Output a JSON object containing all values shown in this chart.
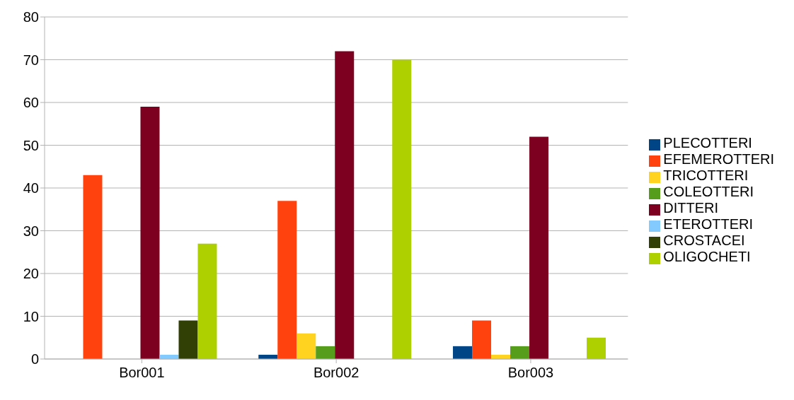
{
  "chart_data": {
    "type": "bar",
    "categories": [
      "Bor001",
      "Bor002",
      "Bor003"
    ],
    "series": [
      {
        "name": "PLECOTTERI",
        "color": "#004586",
        "values": [
          0,
          1,
          3
        ]
      },
      {
        "name": "EFEMEROTTERI",
        "color": "#ff420e",
        "values": [
          43,
          37,
          9
        ]
      },
      {
        "name": "TRICOTTERI",
        "color": "#ffd320",
        "values": [
          0,
          6,
          1
        ]
      },
      {
        "name": "COLEOTTERI",
        "color": "#579d1c",
        "values": [
          0,
          3,
          3
        ]
      },
      {
        "name": "DITTERI",
        "color": "#7e0021",
        "values": [
          59,
          72,
          52
        ]
      },
      {
        "name": "ETEROTTERI",
        "color": "#83caff",
        "values": [
          1,
          0,
          0
        ]
      },
      {
        "name": "CROSTACEI",
        "color": "#314004",
        "values": [
          9,
          0,
          0
        ]
      },
      {
        "name": "OLIGOCHETI",
        "color": "#aecf00",
        "values": [
          27,
          70,
          5
        ]
      }
    ],
    "ylim": [
      0,
      80
    ],
    "yticks": [
      0,
      10,
      20,
      30,
      40,
      50,
      60,
      70,
      80
    ],
    "grid": "y",
    "legend": "right"
  }
}
